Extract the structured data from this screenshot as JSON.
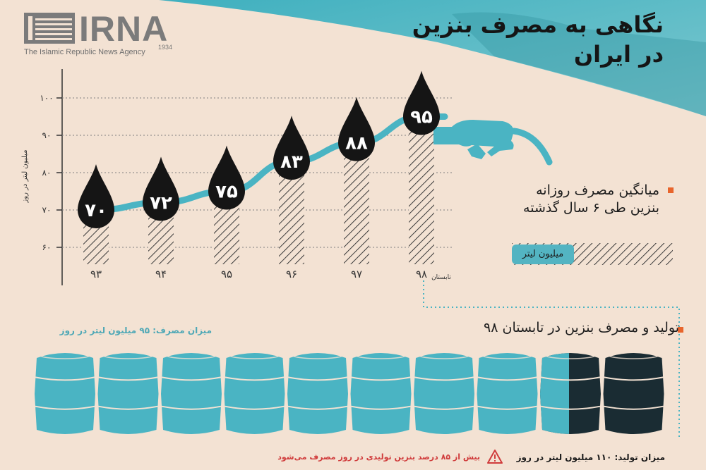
{
  "header": {
    "brand": "IRNA",
    "brand_year": "1934",
    "brand_subtitle": "The Islamic Republic News Agency",
    "title_line1": "نگاهی به مصرف بنزین",
    "title_line2": "در ایران"
  },
  "legend": {
    "text": "میانگین مصرف روزانه بنزین طی ۶ سال گذشته",
    "unit": "میلیون لیتر"
  },
  "section": {
    "title": "تولید و مصرف بنزین در تابستان ۹۸",
    "consumption_label": "میزان مصرف: ۹۵ میلیون لیتر در روز",
    "production_label": "میزان تولید: ۱۱۰ میلیون لیتر در روز",
    "warning_label": "بیش از ۸۵ درصد بنزین تولیدی در روز مصرف می‌شود"
  },
  "colors": {
    "background": "#f3e2d3",
    "accent_teal": "#4ab4c3",
    "drop": "#151515",
    "bullet": "#e8652c",
    "warning": "#d03b3b",
    "barrel_full": "#4ab4c3",
    "barrel_dark": "#1a2c33"
  },
  "chart_data": {
    "type": "line",
    "title": "",
    "xlabel": "",
    "ylabel": "میلیون لیتر در روز",
    "categories": [
      "۹۳",
      "۹۴",
      "۹۵",
      "۹۶",
      "۹۷",
      "۹۸"
    ],
    "category_note": "تابستان",
    "values": [
      70,
      72,
      75,
      83,
      88,
      95
    ],
    "value_labels": [
      "۷۰",
      "۷۲",
      "۷۵",
      "۸۳",
      "۸۸",
      "۹۵"
    ],
    "yticks": [
      60,
      70,
      80,
      90,
      100
    ],
    "ytick_labels": [
      "۶۰",
      "۷۰",
      "۸۰",
      "۹۰",
      "۱۰۰"
    ],
    "ylim": [
      55,
      105
    ],
    "grid": true
  },
  "barrels": {
    "total_count": 10,
    "full_count": 8,
    "partial_fraction": 0.5,
    "dark_count": 1
  }
}
